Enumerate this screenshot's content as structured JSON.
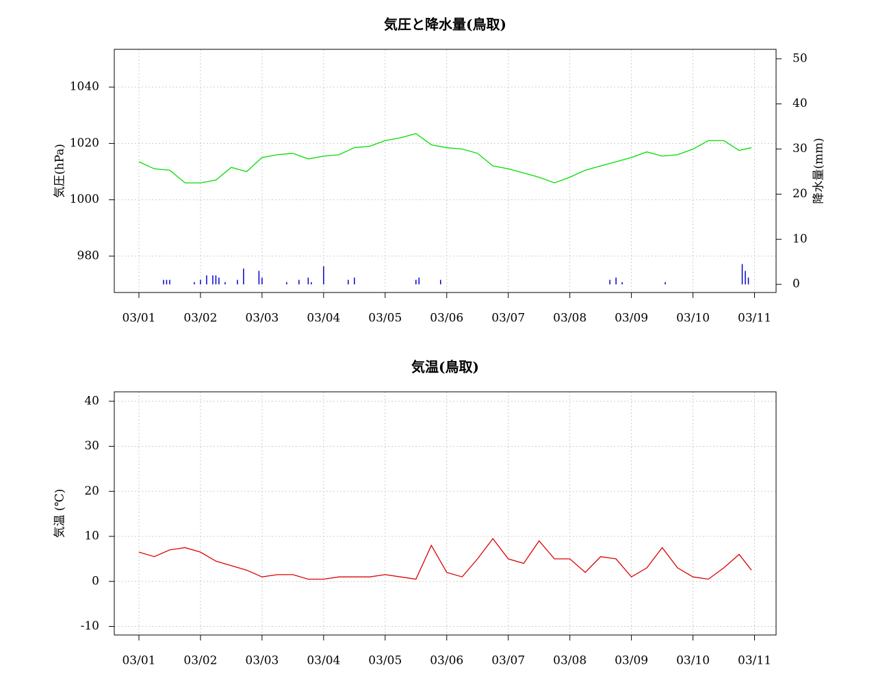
{
  "chart_data": [
    {
      "type": "line",
      "title": "気圧と降水量(鳥取)",
      "y_label": "気圧(hPa)",
      "y2_label": "降水量(mm)",
      "grid": true,
      "xlim": [
        -0.4,
        10.35
      ],
      "xticks": [
        {
          "value": 0,
          "label": "03/01"
        },
        {
          "value": 1,
          "label": "03/02"
        },
        {
          "value": 2,
          "label": "03/03"
        },
        {
          "value": 3,
          "label": "03/04"
        },
        {
          "value": 4,
          "label": "03/05"
        },
        {
          "value": 5,
          "label": "03/06"
        },
        {
          "value": 6,
          "label": "03/07"
        },
        {
          "value": 7,
          "label": "03/08"
        },
        {
          "value": 8,
          "label": "03/09"
        },
        {
          "value": 9,
          "label": "03/10"
        },
        {
          "value": 10,
          "label": "03/11"
        }
      ],
      "ylim": [
        967.1,
        1053.4
      ],
      "yticks": [
        980,
        1000,
        1020,
        1040
      ],
      "y2lim": [
        -1.8,
        52.1
      ],
      "y2ticks": [
        0,
        10,
        20,
        30,
        40,
        50
      ],
      "series": [
        {
          "type": "line",
          "color": "#00dd00",
          "x": [
            0,
            0.25,
            0.5,
            0.75,
            1,
            1.25,
            1.5,
            1.75,
            2,
            2.25,
            2.5,
            2.75,
            3,
            3.25,
            3.5,
            3.75,
            4,
            4.25,
            4.5,
            4.75,
            5,
            5.25,
            5.5,
            5.75,
            6,
            6.25,
            6.5,
            6.75,
            7,
            7.25,
            7.5,
            7.75,
            8,
            8.25,
            8.5,
            8.75,
            9,
            9.25,
            9.5,
            9.75,
            9.95
          ],
          "values": [
            1013.5,
            1011,
            1010.5,
            1006,
            1006,
            1007,
            1011.5,
            1010,
            1015,
            1016,
            1016.5,
            1014.5,
            1015.5,
            1016,
            1018.5,
            1019,
            1021,
            1022,
            1023.5,
            1019.5,
            1018.5,
            1018,
            1016.5,
            1012,
            1011,
            1009.5,
            1008,
            1006,
            1008,
            1010.5,
            1012,
            1013.5,
            1015,
            1017,
            1015.5,
            1016,
            1018,
            1021,
            1021,
            1017.5,
            1018.5
          ]
        },
        {
          "type": "bar",
          "axis": "y2",
          "color": "#0000cc",
          "x": [
            0.4,
            0.45,
            0.5,
            0.9,
            1.0,
            1.1,
            1.2,
            1.25,
            1.3,
            1.4,
            1.6,
            1.7,
            1.95,
            2.0,
            2.4,
            2.6,
            2.75,
            2.8,
            3.0,
            3.4,
            3.5,
            4.5,
            4.55,
            4.9,
            7.65,
            7.75,
            7.85,
            8.55,
            9.8,
            9.85,
            9.9
          ],
          "values": [
            1,
            1,
            1,
            0.5,
            1,
            2,
            2,
            2,
            1.5,
            0.5,
            1,
            3.5,
            3,
            1.5,
            0.5,
            1,
            1.5,
            0.5,
            4,
            1,
            1.5,
            1,
            1.5,
            1,
            1,
            1.5,
            0.5,
            0.5,
            4.5,
            3,
            1.5
          ]
        }
      ]
    },
    {
      "type": "line",
      "title": "気温(鳥取)",
      "y_label": "気温 (℃)",
      "grid": true,
      "xlim": [
        -0.4,
        10.35
      ],
      "xticks": [
        {
          "value": 0,
          "label": "03/01"
        },
        {
          "value": 1,
          "label": "03/02"
        },
        {
          "value": 2,
          "label": "03/03"
        },
        {
          "value": 3,
          "label": "03/04"
        },
        {
          "value": 4,
          "label": "03/05"
        },
        {
          "value": 5,
          "label": "03/06"
        },
        {
          "value": 6,
          "label": "03/07"
        },
        {
          "value": 7,
          "label": "03/08"
        },
        {
          "value": 8,
          "label": "03/09"
        },
        {
          "value": 9,
          "label": "03/10"
        },
        {
          "value": 10,
          "label": "03/11"
        }
      ],
      "ylim": [
        -11.9,
        42.1
      ],
      "yticks": [
        -10,
        0,
        10,
        20,
        30,
        40
      ],
      "series": [
        {
          "type": "line",
          "color": "#dd0000",
          "x": [
            0,
            0.25,
            0.5,
            0.75,
            1,
            1.25,
            1.5,
            1.75,
            2,
            2.25,
            2.5,
            2.75,
            3,
            3.25,
            3.5,
            3.75,
            4,
            4.25,
            4.5,
            4.75,
            5,
            5.25,
            5.5,
            5.75,
            6,
            6.25,
            6.5,
            6.75,
            7,
            7.25,
            7.5,
            7.75,
            8,
            8.25,
            8.5,
            8.75,
            9,
            9.25,
            9.5,
            9.75,
            9.95
          ],
          "values": [
            6.5,
            5.5,
            7,
            7.5,
            6.5,
            4.5,
            3.5,
            2.5,
            1,
            1.5,
            1.5,
            0.5,
            0.5,
            1,
            1,
            1,
            1.5,
            1,
            0.5,
            8,
            2,
            1,
            5,
            9.5,
            5,
            4,
            9,
            5,
            5,
            2,
            5.5,
            5,
            1,
            3,
            7.5,
            3,
            1,
            0.5,
            3,
            6,
            2.5
          ]
        }
      ]
    }
  ]
}
